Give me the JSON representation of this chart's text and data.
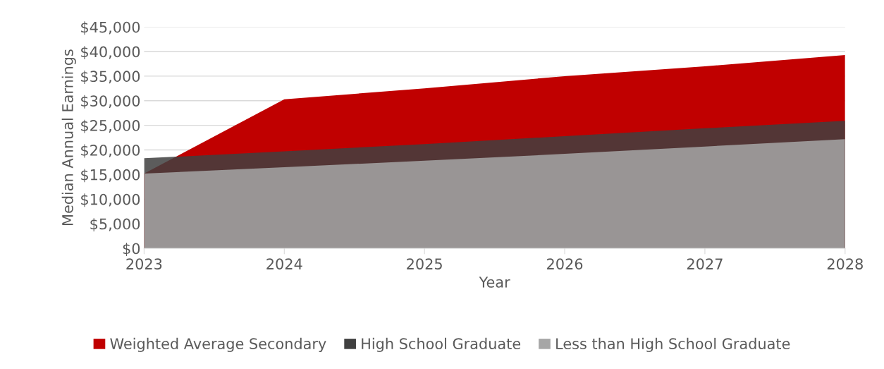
{
  "chart_data": {
    "type": "area",
    "xlabel": "Year",
    "ylabel": "Median Annual Earnings",
    "x": [
      2023,
      2024,
      2025,
      2026,
      2027,
      2028
    ],
    "series": [
      {
        "name": "Weighted Average Secondary",
        "color": "#c00000",
        "values": [
          15200,
          30300,
          32500,
          35000,
          37000,
          39300
        ]
      },
      {
        "name": "High School Graduate",
        "color": "#404040",
        "values": [
          18300,
          19700,
          21200,
          22800,
          24400,
          25900
        ]
      },
      {
        "name": "Less than High School Graduate",
        "color": "#a6a6a6",
        "values": [
          15200,
          16500,
          17800,
          19200,
          20700,
          22200
        ]
      }
    ],
    "xlim": [
      2023,
      2028
    ],
    "xticks": [
      2023,
      2024,
      2025,
      2026,
      2027,
      2028
    ],
    "ylim": [
      0,
      45000
    ],
    "yticks": [
      {
        "value": 0,
        "label": "$0"
      },
      {
        "value": 5000,
        "label": "$5,000"
      },
      {
        "value": 10000,
        "label": "$10,000"
      },
      {
        "value": 15000,
        "label": "$15,000"
      },
      {
        "value": 20000,
        "label": "$20,000"
      },
      {
        "value": 25000,
        "label": "$25,000"
      },
      {
        "value": 30000,
        "label": "$30,000"
      },
      {
        "value": 35000,
        "label": "$35,000"
      },
      {
        "value": 40000,
        "label": "$40,000"
      },
      {
        "value": 45000,
        "label": "$45,000"
      }
    ],
    "grid": "y",
    "legend": "bottom"
  }
}
